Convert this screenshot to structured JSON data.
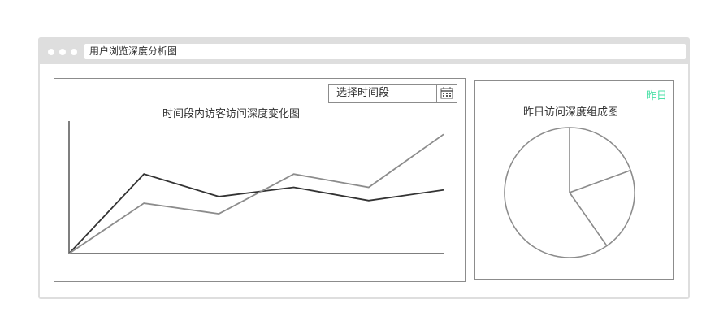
{
  "window": {
    "address_text": "用户浏览深度分析图"
  },
  "line_panel": {
    "select_label": "选择时间段",
    "calendar_icon": "calendar-icon"
  },
  "pie_panel": {
    "badge": "昨日",
    "badge_color": "#4ee1a8"
  },
  "chart_data": [
    {
      "type": "line",
      "title": "时间段内访客访问深度变化图",
      "xlabel": "",
      "ylabel": "",
      "x": [
        0,
        1,
        2,
        3,
        4,
        5
      ],
      "ylim": [
        0,
        100
      ],
      "grid": false,
      "series": [
        {
          "values": [
            0,
            60,
            43,
            50,
            40,
            48
          ],
          "color": "#333333"
        },
        {
          "values": [
            0,
            38,
            30,
            60,
            50,
            90
          ],
          "color": "#8c8c8c"
        }
      ]
    },
    {
      "type": "pie",
      "title": "昨日访问深度组成图",
      "values": [
        70,
        75,
        215
      ],
      "color": "#8c8c8c"
    }
  ]
}
